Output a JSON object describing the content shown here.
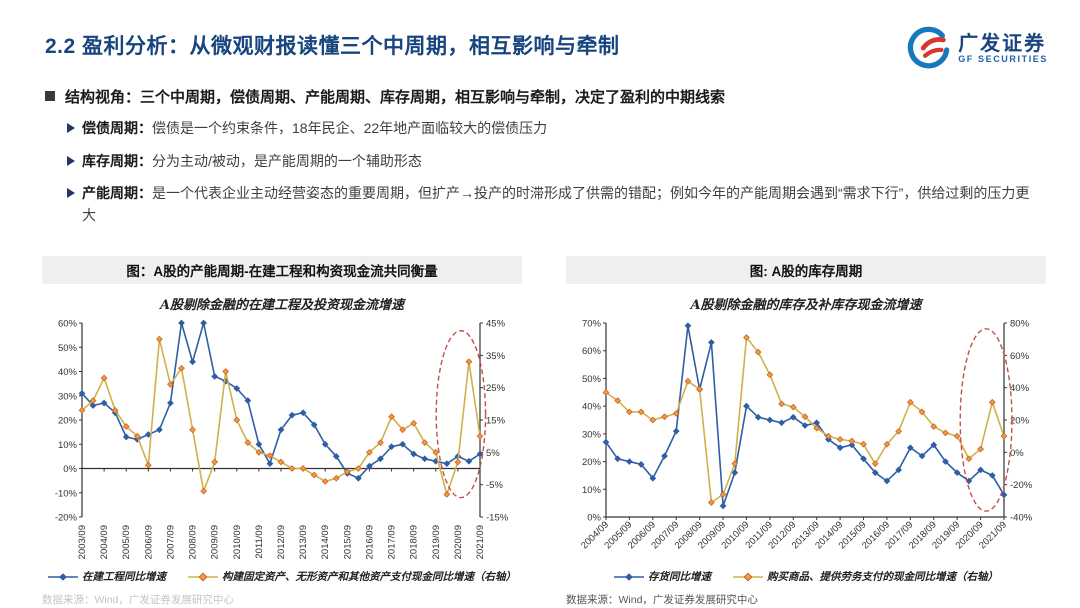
{
  "header": {
    "title": "2.2 盈利分析：从微观财报读懂三个中周期，相互影响与牵制",
    "logo_cn": "广发证券",
    "logo_en": "GF SECURITIES"
  },
  "bullets": {
    "main": "结构视角：三个中周期，偿债周期、产能周期、库存周期，相互影响与牵制，决定了盈利的中期线索",
    "items": [
      {
        "label": "偿债周期：",
        "text": "偿债是一个约束条件，18年民企、22年地产面临较大的偿债压力"
      },
      {
        "label": "库存周期：",
        "text": "分为主动/被动，是产能周期的一个辅助形态"
      },
      {
        "label": "产能周期：",
        "text": "是一个代表企业主动经营姿态的重要周期，但扩产→投产的时滞形成了供需的错配；例如今年的产能周期会遇到“需求下行”，供给过剩的压力更大"
      }
    ]
  },
  "chart_data": [
    {
      "type": "line",
      "panel_header": "图：A股的产能周期-在建工程和构资现金流共同衡量",
      "title": "A股剔除金融的在建工程及投资现金流增速",
      "x_labels": [
        "2003/09",
        "2004/09",
        "2005/09",
        "2006/09",
        "2007/09",
        "2008/09",
        "2009/09",
        "2010/09",
        "2011/09",
        "2012/09",
        "2013/09",
        "2014/09",
        "2015/09",
        "2016/09",
        "2017/09",
        "2018/09",
        "2019/09",
        "2020/09",
        "2021/09"
      ],
      "x_label_rotation": 90,
      "left_axis": {
        "min": -20,
        "max": 60,
        "ticks": [
          60,
          50,
          40,
          30,
          20,
          10,
          0,
          -10,
          -20
        ]
      },
      "right_axis": {
        "min": -15,
        "max": 45,
        "ticks": [
          45,
          35,
          25,
          15,
          5,
          -5,
          -15
        ]
      },
      "series": [
        {
          "name": "在建工程同比增速",
          "axis": "left",
          "color": "#2E5EA4",
          "values": [
            31,
            26,
            27,
            23,
            13,
            12,
            14,
            16,
            27,
            62,
            44,
            62,
            38,
            36,
            33,
            28,
            10,
            2,
            16,
            22,
            23,
            18,
            10,
            5,
            -2,
            -4,
            1,
            4,
            9,
            10,
            6,
            4,
            3,
            2,
            5,
            3,
            6
          ]
        },
        {
          "name": "构建固定资产、无形资产和其他资产支付现金同比增速（右轴）",
          "axis": "right",
          "color": "#C9641F",
          "line_color": "#D2B04C",
          "marker_fill": "#F29A44",
          "values": [
            18,
            21,
            28,
            18,
            13,
            10,
            1,
            40,
            26,
            31,
            12,
            -7,
            2,
            30,
            15,
            8,
            5,
            4,
            2,
            0,
            0,
            -2,
            -4,
            -3,
            -1,
            0,
            5,
            8,
            16,
            12,
            14,
            8,
            5,
            -8,
            2,
            33,
            10
          ]
        }
      ],
      "ellipse": {
        "cx": 0.952,
        "cy": 0.47,
        "rx": 0.062,
        "ry": 0.43,
        "color": "#C0504D"
      },
      "source": "数据来源：Wind，广发证券发展研究中心"
    },
    {
      "type": "line",
      "panel_header": "图: A股的库存周期",
      "title": "A股剔除金融的库存及补库存现金流增速",
      "x_labels": [
        "2004/09",
        "2005/09",
        "2006/09",
        "2007/09",
        "2008/09",
        "2009/09",
        "2010/09",
        "2011/09",
        "2012/09",
        "2013/09",
        "2014/09",
        "2015/09",
        "2016/09",
        "2017/09",
        "2018/09",
        "2019/09",
        "2020/09",
        "2021/09"
      ],
      "x_label_rotation": 45,
      "left_axis": {
        "min": 0,
        "max": 70,
        "ticks": [
          70,
          60,
          50,
          40,
          30,
          20,
          10,
          0
        ]
      },
      "right_axis": {
        "min": -40,
        "max": 80,
        "ticks": [
          80,
          60,
          40,
          20,
          0,
          -20,
          -40
        ]
      },
      "series": [
        {
          "name": "存货同比增速",
          "axis": "left",
          "color": "#2E5EA4",
          "values": [
            27,
            21,
            20,
            19,
            14,
            22,
            31,
            69,
            46,
            63,
            4,
            16,
            40,
            36,
            35,
            34,
            36,
            33,
            34,
            28,
            25,
            26,
            21,
            16,
            13,
            17,
            25,
            22,
            26,
            20,
            16,
            13,
            17,
            15,
            8
          ]
        },
        {
          "name": "购买商品、提供劳务支付的现金同比增速（右轴）",
          "axis": "right",
          "color": "#C9641F",
          "line_color": "#D2B04C",
          "marker_fill": "#F29A44",
          "values": [
            37,
            32,
            25,
            25,
            20,
            22,
            24,
            44,
            39,
            -31,
            -26,
            -7,
            71,
            62,
            48,
            30,
            28,
            22,
            15,
            10,
            8,
            7,
            5,
            -7,
            5,
            13,
            31,
            25,
            16,
            12,
            10,
            -4,
            2,
            31,
            10
          ]
        }
      ],
      "ellipse": {
        "cx": 0.955,
        "cy": 0.5,
        "rx": 0.065,
        "ry": 0.47,
        "color": "#C0504D"
      },
      "source": "数据来源：Wind，广发证券发展研究中心"
    }
  ]
}
